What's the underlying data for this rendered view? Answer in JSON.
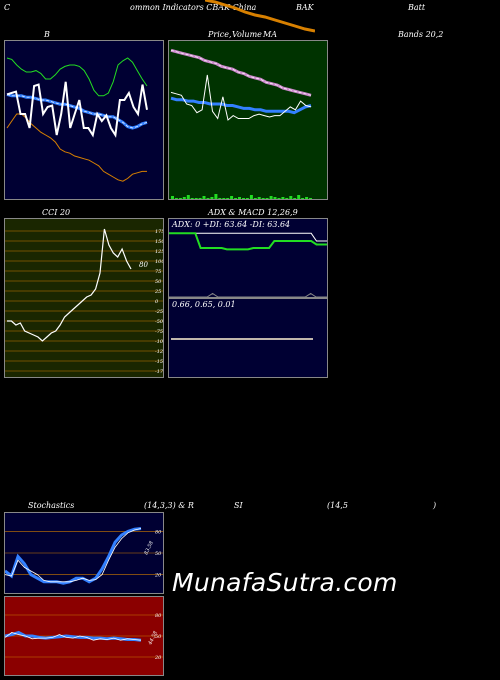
{
  "header": {
    "c": "C",
    "ommon": "ommon  Indicators CBAK China",
    "bak": "BAK",
    "batt": "Batt"
  },
  "titles": {
    "b": "B",
    "price": "Price,",
    "volume": "Volume",
    "ma": "MA",
    "bands": "Bands 20,2",
    "cci": "CCI 20",
    "adx_macd": "ADX  & MACD 12,26,9",
    "adx_line": "ADX: 0   +DI: 63.64  -DI: 63.64",
    "macd_line": "0.66,  0.65,  0.01",
    "stoch": "Stochastics",
    "stoch_params": "(14,3,3) & R",
    "si": "SI",
    "rsi_params": "(14,5",
    "paren": ")",
    "cci_value": "80",
    "stoch_value": "83.58",
    "rsi_value": "44.58"
  },
  "watermark": "MunafaSutra.com",
  "colors": {
    "navy": "#000033",
    "green_bg": "#003300",
    "olive": "#1a2600",
    "dark_red": "#8b0000",
    "blue": "#3380ff",
    "lime": "#22dd22",
    "orange": "#d88000",
    "pink": "#cc88cc"
  },
  "chart_data": [
    {
      "name": "bollinger-bands",
      "type": "line",
      "ylim": [
        0,
        100
      ],
      "series": [
        {
          "values": [
            95,
            94,
            90,
            87,
            85,
            85,
            86,
            84,
            80,
            80,
            83,
            87,
            89,
            90,
            90,
            89,
            86,
            80,
            72,
            68,
            68,
            70,
            78,
            90,
            93,
            95,
            92,
            86,
            80,
            75
          ]
        },
        {
          "values": [
            69,
            68,
            68,
            68,
            67,
            67,
            66,
            65,
            65,
            64,
            63,
            62,
            62,
            61,
            60,
            59,
            57,
            56,
            55,
            55,
            54,
            53,
            53,
            51,
            49,
            46,
            45,
            46,
            48,
            49
          ]
        },
        {
          "values": [
            45,
            50,
            55,
            55,
            52,
            48,
            45,
            42,
            40,
            38,
            35,
            30,
            28,
            27,
            25,
            24,
            23,
            22,
            20,
            18,
            14,
            12,
            10,
            8,
            7,
            9,
            12,
            13,
            14,
            14
          ]
        },
        {
          "values": [
            69,
            70,
            71,
            55,
            55,
            45,
            75,
            76,
            55,
            60,
            61,
            40,
            55,
            78,
            45,
            55,
            65,
            45,
            45,
            40,
            55,
            50,
            54,
            45,
            40,
            65,
            65,
            70,
            60,
            55,
            76,
            58
          ]
        }
      ]
    },
    {
      "name": "price-volume-ma",
      "type": "line",
      "ylim": [
        0,
        100
      ],
      "series": [
        {
          "values": [
            97,
            96,
            95,
            94,
            93,
            92,
            90,
            89,
            88,
            86,
            85,
            84,
            82,
            81,
            79,
            78,
            77,
            75,
            74,
            73,
            71,
            70,
            69,
            68,
            67,
            66
          ]
        },
        {
          "values": [
            97,
            96,
            95,
            94,
            93,
            92,
            90,
            89,
            88,
            86,
            85,
            84,
            82,
            81,
            79,
            78,
            77,
            75,
            74,
            73,
            71,
            70,
            69,
            68,
            67,
            66
          ]
        },
        {
          "values": [
            64,
            63,
            63,
            62,
            62,
            61,
            61,
            60,
            60,
            60,
            59,
            59,
            58,
            57,
            57,
            56,
            56,
            55,
            55,
            55,
            55,
            55,
            54,
            56,
            58,
            59
          ]
        },
        {
          "values": [
            68,
            67,
            66,
            60,
            59,
            54,
            56,
            80,
            55,
            50,
            65,
            49,
            52,
            50,
            50,
            50,
            52,
            53,
            52,
            51,
            52,
            52,
            55,
            58,
            56,
            62,
            59,
            58
          ]
        },
        {
          "values": [
            2,
            0,
            0,
            1,
            3,
            0,
            0,
            0,
            2,
            0,
            1,
            4,
            0,
            0,
            0,
            2,
            0,
            1,
            0,
            0,
            3,
            0,
            1,
            0,
            0,
            2,
            1,
            0,
            1,
            0,
            2,
            0,
            3,
            0,
            1,
            0
          ]
        }
      ]
    },
    {
      "name": "cci",
      "type": "line",
      "ylim": [
        -175,
        175
      ],
      "yticks": [
        175,
        150,
        125,
        100,
        75,
        50,
        25,
        0,
        -25,
        -50,
        -75,
        -100,
        -125,
        -150,
        -175
      ],
      "series": [
        {
          "values": [
            -50,
            -50,
            -60,
            -55,
            -75,
            -80,
            -85,
            -90,
            -100,
            -90,
            -80,
            -75,
            -60,
            -40,
            -30,
            -20,
            -10,
            0,
            10,
            15,
            30,
            70,
            180,
            140,
            120,
            110,
            130,
            100,
            80
          ]
        }
      ]
    },
    {
      "name": "adx",
      "type": "line",
      "ylim": [
        0,
        100
      ],
      "series": [
        {
          "values": [
            91,
            91,
            91,
            91,
            91,
            91,
            70,
            70,
            70,
            70,
            70,
            68,
            68,
            68,
            68,
            68,
            70,
            70,
            70,
            70,
            80,
            80,
            80,
            80,
            80,
            80,
            80,
            80,
            75,
            75,
            75
          ]
        },
        {
          "values": [
            91,
            91,
            91,
            91,
            91,
            91,
            91,
            91,
            91,
            91,
            91,
            91,
            91,
            91,
            91,
            91,
            91,
            91,
            91,
            91,
            91,
            91,
            91,
            91,
            91,
            91,
            91,
            91,
            80,
            80,
            80
          ]
        },
        {
          "values": [
            0,
            0,
            0,
            0,
            0,
            0,
            0,
            0,
            5,
            0,
            0,
            0,
            0,
            0,
            0,
            0,
            0,
            0,
            0,
            0,
            0,
            0,
            0,
            0,
            0,
            0,
            5,
            0,
            0,
            0
          ]
        }
      ]
    },
    {
      "name": "macd",
      "type": "line",
      "series": [
        {
          "values": [
            0.66,
            0.66,
            0.66,
            0.66,
            0.66,
            0.66,
            0.66,
            0.66,
            0.66,
            0.66,
            0.66,
            0.66,
            0.66,
            0.66,
            0.66
          ]
        }
      ]
    },
    {
      "name": "stochastics",
      "type": "line",
      "ylim": [
        0,
        100
      ],
      "yticks": [
        80,
        50,
        20
      ],
      "series": [
        {
          "values": [
            25,
            18,
            45,
            35,
            20,
            15,
            10,
            10,
            10,
            8,
            10,
            15,
            15,
            10,
            15,
            28,
            45,
            65,
            75,
            80,
            83,
            84
          ]
        },
        {
          "values": [
            20,
            18,
            40,
            30,
            25,
            20,
            12,
            10,
            10,
            10,
            10,
            12,
            15,
            12,
            13,
            20,
            40,
            58,
            70,
            78,
            82,
            84
          ]
        }
      ]
    },
    {
      "name": "rsi",
      "type": "line",
      "ylim": [
        0,
        100
      ],
      "yticks": [
        80,
        50,
        20
      ],
      "series": [
        {
          "values": [
            50,
            52,
            55,
            50,
            50,
            48,
            47,
            48,
            49,
            50,
            49,
            48,
            48,
            47,
            47,
            46,
            47,
            46,
            45,
            45,
            44
          ]
        },
        {
          "values": [
            48,
            55,
            52,
            50,
            46,
            47,
            47,
            48,
            52,
            48,
            47,
            50,
            48,
            44,
            46,
            45,
            47,
            44,
            46,
            45,
            44
          ]
        }
      ]
    }
  ]
}
